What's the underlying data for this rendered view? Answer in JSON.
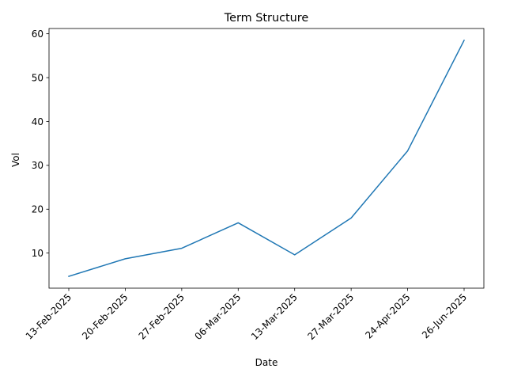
{
  "chart_data": {
    "type": "line",
    "title": "Term Structure",
    "xlabel": "Date",
    "ylabel": "Vol",
    "categories": [
      "13-Feb-2025",
      "20-Feb-2025",
      "27-Feb-2025",
      "06-Mar-2025",
      "13-Mar-2025",
      "27-Mar-2025",
      "24-Apr-2025",
      "26-Jun-2025"
    ],
    "series": [
      {
        "values": [
          4.7,
          8.7,
          11.1,
          16.9,
          9.6,
          18.0,
          33.3,
          58.5
        ],
        "color": "#1f77b4"
      }
    ],
    "ylim": [
      2.0,
      61.2
    ],
    "yticks": [
      10,
      20,
      30,
      40,
      50,
      60
    ],
    "grid": false,
    "legend": "none"
  }
}
